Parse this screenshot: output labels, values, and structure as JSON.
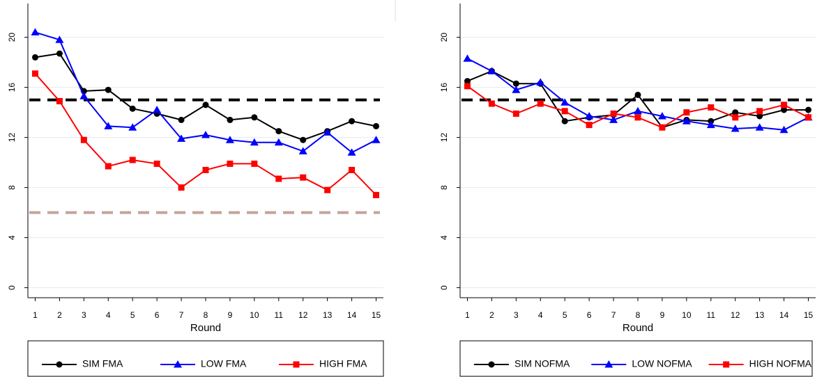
{
  "chart_data": [
    {
      "type": "line",
      "x_label": "Round",
      "x": [
        1,
        2,
        3,
        4,
        5,
        6,
        7,
        8,
        9,
        10,
        11,
        12,
        13,
        14,
        15
      ],
      "xlim": [
        0.7,
        15.3
      ],
      "xticks": [
        1,
        2,
        3,
        4,
        5,
        6,
        7,
        8,
        9,
        10,
        11,
        12,
        13,
        14,
        15
      ],
      "ylim": [
        -0.8,
        22.7
      ],
      "yticks": [
        0,
        4,
        8,
        12,
        16,
        20
      ],
      "grid": true,
      "reference_lines": [
        {
          "value": 15,
          "color": "#000000"
        },
        {
          "value": 6,
          "color": "#c4a49a"
        }
      ],
      "series": [
        {
          "name": "SIM FMA",
          "color": "#000000",
          "marker": "circle",
          "values": [
            18.4,
            18.7,
            15.7,
            15.8,
            14.3,
            13.9,
            13.4,
            14.6,
            13.4,
            13.6,
            12.5,
            11.8,
            12.5,
            13.3,
            12.9
          ]
        },
        {
          "name": "LOW FMA",
          "color": "#0000ff",
          "marker": "triangle",
          "values": [
            20.4,
            19.8,
            15.3,
            12.9,
            12.8,
            14.2,
            11.9,
            12.2,
            11.8,
            11.6,
            11.6,
            10.9,
            12.4,
            10.8,
            11.8
          ]
        },
        {
          "name": "HIGH FMA",
          "color": "#ff0000",
          "marker": "square",
          "values": [
            17.1,
            14.9,
            11.8,
            9.7,
            10.2,
            9.9,
            8.0,
            9.4,
            9.9,
            9.9,
            8.7,
            8.8,
            7.8,
            9.4,
            7.4
          ]
        }
      ]
    },
    {
      "type": "line",
      "x_label": "Round",
      "x": [
        1,
        2,
        3,
        4,
        5,
        6,
        7,
        8,
        9,
        10,
        11,
        12,
        13,
        14,
        15
      ],
      "xlim": [
        0.7,
        15.3
      ],
      "xticks": [
        1,
        2,
        3,
        4,
        5,
        6,
        7,
        8,
        9,
        10,
        11,
        12,
        13,
        14,
        15
      ],
      "ylim": [
        -0.8,
        22.7
      ],
      "yticks": [
        0,
        4,
        8,
        12,
        16,
        20
      ],
      "grid": true,
      "reference_lines": [
        {
          "value": 15,
          "color": "#000000"
        }
      ],
      "series": [
        {
          "name": "SIM NOFMA",
          "color": "#000000",
          "marker": "circle",
          "values": [
            16.5,
            17.3,
            16.3,
            16.3,
            13.3,
            13.6,
            13.8,
            15.4,
            12.8,
            13.4,
            13.3,
            14.0,
            13.7,
            14.2,
            14.2
          ]
        },
        {
          "name": "LOW NOFMA",
          "color": "#0000ff",
          "marker": "triangle",
          "values": [
            18.3,
            17.3,
            15.8,
            16.4,
            14.8,
            13.7,
            13.4,
            14.1,
            13.7,
            13.3,
            13.0,
            12.7,
            12.8,
            12.6,
            13.6
          ]
        },
        {
          "name": "HIGH NOFMA",
          "color": "#ff0000",
          "marker": "square",
          "values": [
            16.1,
            14.7,
            13.9,
            14.7,
            14.1,
            13.0,
            13.9,
            13.6,
            12.8,
            14.0,
            14.4,
            13.6,
            14.1,
            14.6,
            13.6
          ]
        }
      ]
    }
  ]
}
